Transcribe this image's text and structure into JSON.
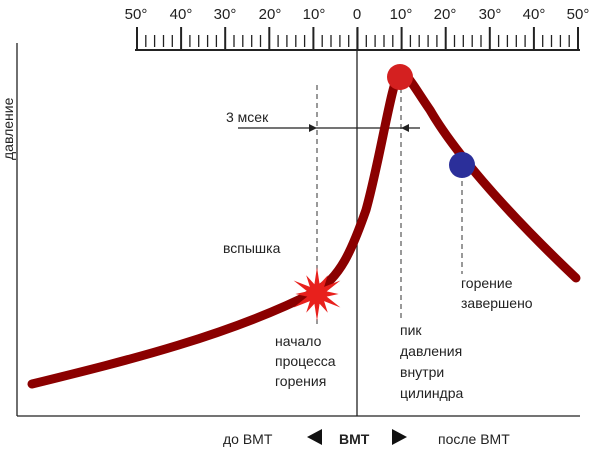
{
  "scale": {
    "degree_labels_left": [
      "50°",
      "40°",
      "30°",
      "20°",
      "10°"
    ],
    "zero_label": "0",
    "degree_labels_right": [
      "10°",
      "20°",
      "30°",
      "40°",
      "50°"
    ]
  },
  "axes": {
    "y_label": "давление"
  },
  "annotations": {
    "interval": "3 мсек",
    "flash": "вспышка",
    "combustion_start": [
      "начало",
      "процесса",
      "горения"
    ],
    "peak_pressure": [
      "пик",
      "давления",
      "внутри",
      "цилиндра"
    ],
    "combustion_end": [
      "горение",
      "завершено"
    ]
  },
  "bottom": {
    "before": "до ВМТ",
    "tdc": "ВМТ",
    "after": "после ВМТ"
  },
  "colors": {
    "curve": "#8b0000",
    "peak_dot": "#d42020",
    "end_dot": "#2b2f9a",
    "spark": "#e8201c",
    "ink": "#222222"
  }
}
